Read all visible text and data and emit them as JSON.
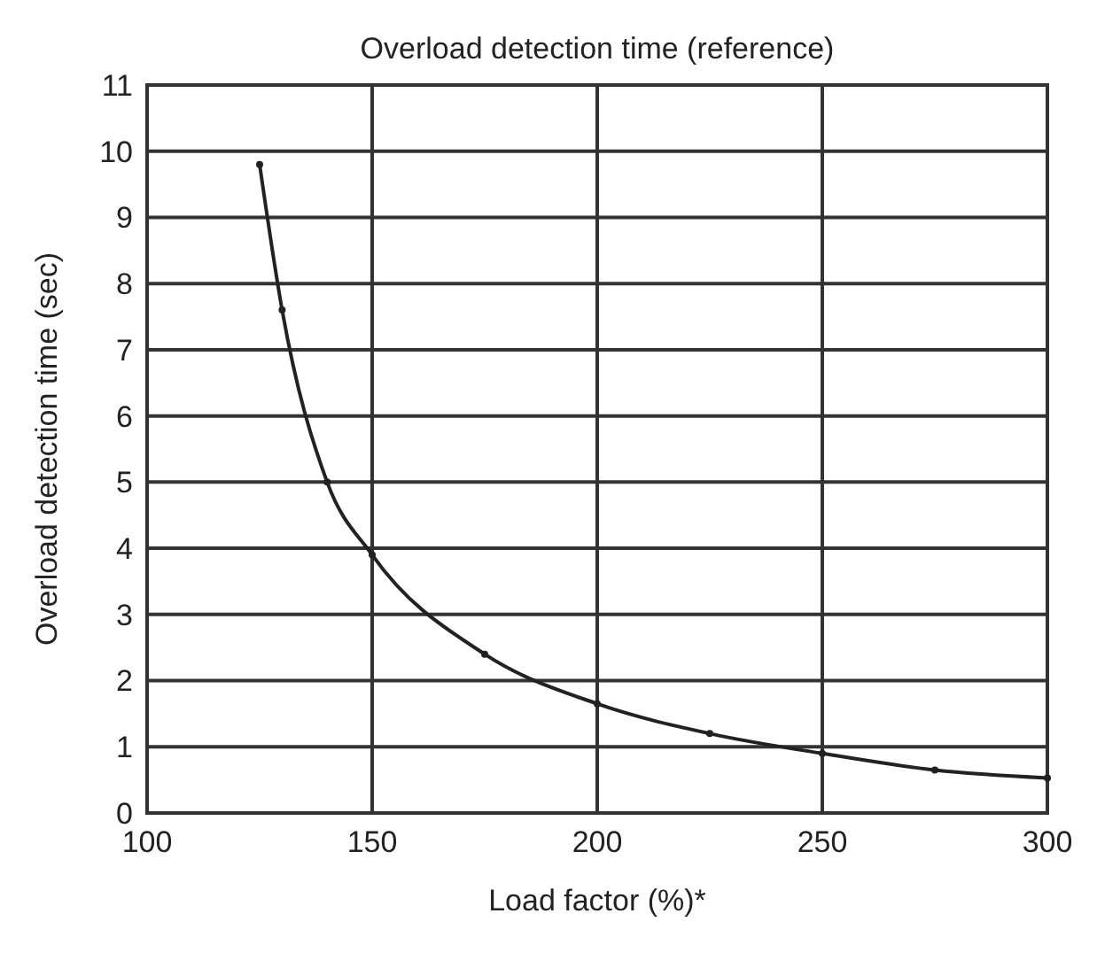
{
  "chart_data": {
    "type": "line",
    "title": "Overload detection time (reference)",
    "xlabel": "Load factor (%)*",
    "ylabel": "Overload detection time (sec)",
    "x": [
      125,
      130,
      140,
      150,
      175,
      200,
      225,
      250,
      275,
      300
    ],
    "series": [
      {
        "color": "#222222",
        "values": [
          9.8,
          7.6,
          5.0,
          3.9,
          2.4,
          1.65,
          1.2,
          0.9,
          0.65,
          0.53
        ]
      }
    ],
    "xlim": [
      100,
      300
    ],
    "xticks": [
      100,
      150,
      200,
      250,
      300
    ],
    "ylim": [
      0,
      11
    ],
    "yticks": [
      0,
      1,
      2,
      3,
      4,
      5,
      6,
      7,
      8,
      9,
      10,
      11
    ],
    "grid": true,
    "marker": "circle",
    "line_style": "solid"
  }
}
